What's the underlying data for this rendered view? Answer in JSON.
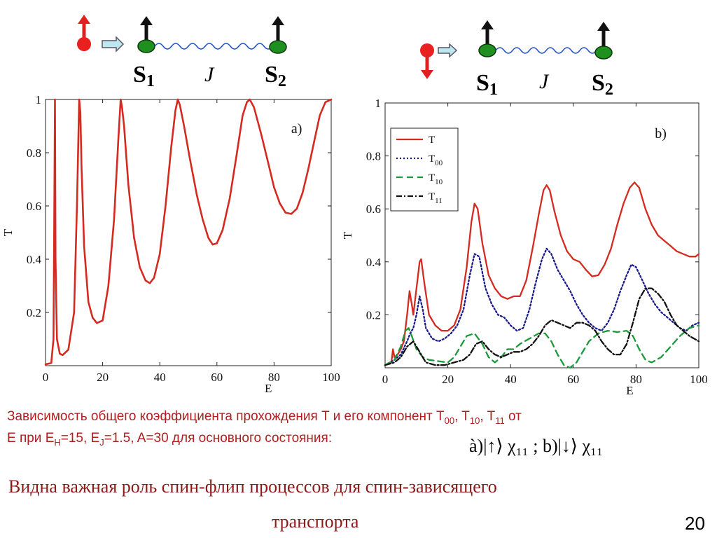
{
  "diagram_a": {
    "s1": "S",
    "s1_sub": "1",
    "s2": "S",
    "s2_sub": "2",
    "j": "J"
  },
  "diagram_b": {
    "s1": "S",
    "s1_sub": "1",
    "s2": "S",
    "s2_sub": "2",
    "j": "J"
  },
  "caption": {
    "text1": "Зависимость общего коэффициента прохождения T и его компонент T",
    "t00": "00",
    "sep1": ", T",
    "t10": "10",
    "sep2": ", T",
    "t11": "11",
    "tail1": " от",
    "line2_pre": "E при E",
    "eh_sub": "H",
    "eh_val": "=15, E",
    "ej_sub": "J",
    "ej_val": "=1.5, A=30 для основного состояния:",
    "formula": "à)|↑⟩ χ₁₁ ; b)|↓⟩ χ₁₁"
  },
  "footer": {
    "line1": "Видна важная роль спин-флип процессов для спин-зависящего",
    "line2": "транспорта",
    "page": "20"
  },
  "colors": {
    "red": "#d42a20",
    "blue": "#1a1a8c",
    "green": "#1a9a3a",
    "black": "#111111",
    "spin_green": "#1f8f1f"
  },
  "chart_data": [
    {
      "type": "line",
      "panel_label": "a)",
      "xlabel": "E",
      "ylabel": "T",
      "xlim": [
        0,
        100
      ],
      "ylim": [
        0,
        1
      ],
      "xticks": [
        "0",
        "20",
        "40",
        "60",
        "80",
        "100"
      ],
      "yticks": [
        "0.2",
        "0.4",
        "0.6",
        "0.8",
        "1"
      ],
      "series": [
        {
          "color": "#d42a20",
          "x": [
            0,
            2,
            2.8,
            3.1,
            3.3,
            3.5,
            4,
            5,
            6,
            8,
            10,
            11,
            11.8,
            12.2,
            12.6,
            13.5,
            15,
            16.5,
            18,
            20,
            22,
            24,
            25.5,
            26.3,
            26.8,
            27.5,
            29,
            31,
            33,
            35,
            36.5,
            38,
            40,
            42,
            44,
            45.5,
            46.3,
            47,
            48.5,
            50.5,
            53,
            55,
            57,
            58.5,
            60,
            62,
            64.5,
            67,
            69,
            70.5,
            71.5,
            73,
            75.5,
            78,
            80,
            82,
            84,
            86,
            88,
            90,
            92,
            94,
            96,
            98,
            100
          ],
          "y": [
            0.005,
            0.01,
            0.1,
            0.6,
            1.0,
            0.4,
            0.1,
            0.045,
            0.04,
            0.06,
            0.2,
            0.6,
            1.0,
            0.95,
            0.75,
            0.45,
            0.24,
            0.18,
            0.16,
            0.17,
            0.3,
            0.55,
            0.85,
            1.0,
            0.97,
            0.9,
            0.68,
            0.48,
            0.37,
            0.32,
            0.31,
            0.33,
            0.42,
            0.6,
            0.82,
            0.96,
            1.0,
            0.98,
            0.9,
            0.78,
            0.64,
            0.55,
            0.48,
            0.455,
            0.46,
            0.51,
            0.63,
            0.8,
            0.94,
            0.99,
            1.0,
            0.97,
            0.87,
            0.76,
            0.67,
            0.61,
            0.575,
            0.57,
            0.59,
            0.65,
            0.74,
            0.84,
            0.94,
            0.99,
            1.0
          ]
        }
      ]
    },
    {
      "type": "line",
      "panel_label": "b)",
      "xlabel": "E",
      "ylabel": "T",
      "xlim": [
        0,
        100
      ],
      "ylim": [
        0,
        1
      ],
      "xticks": [
        "0",
        "20",
        "40",
        "60",
        "80",
        "100"
      ],
      "yticks": [
        "0.2",
        "0.4",
        "0.6",
        "0.8",
        "1"
      ],
      "legend_position": "top-left",
      "series": [
        {
          "name": "T",
          "sub": "",
          "color": "#d42a20",
          "dash": "",
          "x": [
            0,
            2,
            2.5,
            3,
            4,
            5,
            6,
            7,
            7.8,
            8.5,
            9,
            10,
            11,
            11.5,
            12.5,
            14,
            16,
            18,
            20,
            22,
            24,
            26,
            27.5,
            28.5,
            29.5,
            31,
            33,
            35,
            37,
            39,
            41,
            43,
            45,
            47,
            49,
            50.5,
            51.5,
            52.5,
            54,
            56,
            58,
            60,
            62,
            64,
            66,
            68,
            70,
            72,
            74,
            76,
            78,
            79.5,
            81,
            83,
            85,
            87,
            89,
            91,
            93,
            95,
            97,
            99,
            100
          ],
          "y": [
            0.01,
            0.02,
            0.07,
            0.04,
            0.05,
            0.07,
            0.1,
            0.2,
            0.29,
            0.24,
            0.2,
            0.3,
            0.4,
            0.41,
            0.32,
            0.2,
            0.16,
            0.14,
            0.14,
            0.16,
            0.22,
            0.38,
            0.55,
            0.62,
            0.6,
            0.47,
            0.35,
            0.3,
            0.27,
            0.26,
            0.27,
            0.27,
            0.33,
            0.45,
            0.58,
            0.67,
            0.69,
            0.67,
            0.59,
            0.5,
            0.44,
            0.41,
            0.4,
            0.37,
            0.345,
            0.35,
            0.39,
            0.45,
            0.54,
            0.62,
            0.68,
            0.7,
            0.68,
            0.6,
            0.54,
            0.5,
            0.48,
            0.46,
            0.44,
            0.43,
            0.42,
            0.42,
            0.43
          ]
        },
        {
          "name": "T",
          "sub": "00",
          "color": "#1a1a8c",
          "dash": "2,3",
          "x": [
            0,
            3,
            5,
            7,
            8,
            9,
            10,
            11,
            12,
            13,
            15,
            17,
            19,
            21,
            23,
            25,
            27,
            28.5,
            30,
            32,
            34,
            36,
            38,
            40,
            42,
            44,
            46,
            48,
            50,
            51.5,
            53,
            55,
            57,
            59,
            61,
            63,
            65,
            67,
            69,
            71,
            73,
            75,
            77,
            78.5,
            80,
            82,
            84,
            86,
            88,
            90,
            92,
            94,
            96,
            98,
            100
          ],
          "y": [
            0.01,
            0.03,
            0.05,
            0.1,
            0.13,
            0.15,
            0.2,
            0.27,
            0.22,
            0.15,
            0.11,
            0.1,
            0.11,
            0.13,
            0.16,
            0.22,
            0.35,
            0.43,
            0.42,
            0.3,
            0.24,
            0.2,
            0.19,
            0.16,
            0.14,
            0.15,
            0.22,
            0.32,
            0.41,
            0.45,
            0.43,
            0.37,
            0.33,
            0.29,
            0.24,
            0.2,
            0.17,
            0.15,
            0.14,
            0.17,
            0.22,
            0.29,
            0.35,
            0.39,
            0.38,
            0.33,
            0.28,
            0.24,
            0.21,
            0.19,
            0.17,
            0.15,
            0.14,
            0.16,
            0.17
          ]
        },
        {
          "name": "T",
          "sub": "10",
          "color": "#1a9a3a",
          "dash": "9,6",
          "x": [
            0,
            3,
            5,
            6.5,
            7.5,
            8.5,
            10,
            12,
            14,
            17,
            20,
            22,
            24,
            26,
            28.5,
            31,
            33,
            35,
            37,
            39,
            41,
            43,
            46,
            49,
            51,
            53,
            55,
            57,
            59,
            61,
            63,
            65,
            68,
            71,
            74,
            77,
            79,
            81,
            83,
            85,
            88,
            91,
            94,
            97,
            100
          ],
          "y": [
            0.01,
            0.03,
            0.08,
            0.14,
            0.15,
            0.12,
            0.07,
            0.04,
            0.03,
            0.025,
            0.02,
            0.04,
            0.08,
            0.12,
            0.13,
            0.09,
            0.04,
            0.02,
            0.04,
            0.07,
            0.07,
            0.09,
            0.11,
            0.13,
            0.13,
            0.1,
            0.05,
            0.01,
            0.0,
            0.02,
            0.06,
            0.1,
            0.13,
            0.14,
            0.135,
            0.14,
            0.12,
            0.07,
            0.03,
            0.02,
            0.04,
            0.08,
            0.12,
            0.15,
            0.16
          ]
        },
        {
          "name": "T",
          "sub": "11",
          "color": "#111111",
          "dash": "8,3,2,3",
          "x": [
            0,
            3,
            5,
            7,
            9,
            11,
            13,
            16,
            19,
            22,
            25,
            27,
            29,
            31,
            33,
            35,
            37,
            39,
            41,
            43,
            45,
            47,
            49,
            51,
            53,
            55,
            57,
            59,
            61,
            63,
            65,
            67,
            69,
            71,
            73,
            75,
            77,
            79,
            81,
            83,
            85,
            87,
            89,
            91,
            93,
            95,
            97,
            100
          ],
          "y": [
            0.01,
            0.02,
            0.04,
            0.08,
            0.1,
            0.06,
            0.02,
            0.01,
            0.01,
            0.02,
            0.03,
            0.05,
            0.09,
            0.1,
            0.07,
            0.05,
            0.04,
            0.05,
            0.06,
            0.06,
            0.07,
            0.09,
            0.12,
            0.16,
            0.18,
            0.17,
            0.16,
            0.15,
            0.17,
            0.17,
            0.16,
            0.14,
            0.1,
            0.07,
            0.05,
            0.05,
            0.09,
            0.17,
            0.26,
            0.3,
            0.3,
            0.28,
            0.25,
            0.2,
            0.16,
            0.14,
            0.12,
            0.1
          ]
        }
      ]
    }
  ]
}
